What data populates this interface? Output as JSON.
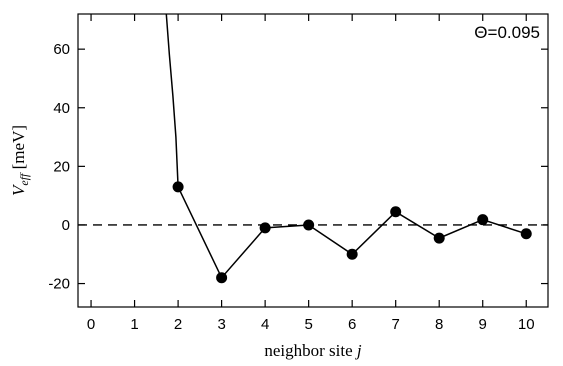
{
  "chart_data": {
    "type": "line",
    "annotation": "Θ=0.095",
    "xlabel_main": "neighbor site ",
    "xlabel_var": "j",
    "ylabel_main": "V",
    "ylabel_sub": "eff",
    "ylabel_unit": " [meV]",
    "xlim": [
      -0.3,
      10.5
    ],
    "ylim": [
      -28,
      72
    ],
    "xticks": [
      0,
      1,
      2,
      3,
      4,
      5,
      6,
      7,
      8,
      9,
      10
    ],
    "yticks": [
      -20,
      0,
      20,
      40,
      60
    ],
    "reference_line": {
      "y": 0,
      "style": "dashed"
    },
    "series": [
      {
        "curve": [
          [
            1.73,
            72
          ],
          [
            1.8,
            58
          ],
          [
            1.88,
            44
          ],
          [
            1.95,
            30
          ],
          [
            2.0,
            13
          ]
        ],
        "points": [
          [
            2,
            13
          ],
          [
            3,
            -18
          ],
          [
            4,
            -1
          ],
          [
            5,
            0
          ],
          [
            6,
            -10
          ],
          [
            7,
            4.5
          ],
          [
            8,
            -4.5
          ],
          [
            9,
            1.8
          ],
          [
            10,
            -3
          ]
        ]
      }
    ]
  }
}
